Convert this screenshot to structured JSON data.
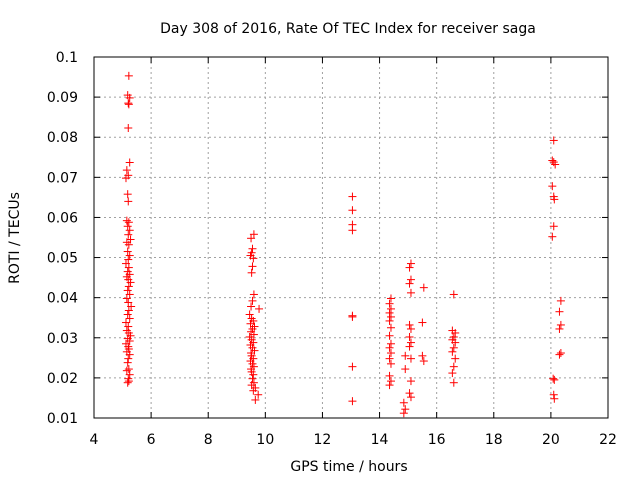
{
  "chart_data": {
    "type": "scatter",
    "title": "Day 308 of 2016, Rate Of TEC Index for receiver saga",
    "xlabel": "GPS time / hours",
    "ylabel": "ROTI / TECUs",
    "xlim": [
      4,
      22
    ],
    "ylim": [
      0.01,
      0.1
    ],
    "xticks": [
      4,
      6,
      8,
      10,
      12,
      14,
      16,
      18,
      20,
      22
    ],
    "xtick_labels": [
      "4",
      "6",
      "8",
      "10",
      "12",
      "14",
      "16",
      "18",
      "20",
      "22"
    ],
    "yticks": [
      0.01,
      0.02,
      0.03,
      0.04,
      0.05,
      0.06,
      0.07,
      0.08,
      0.09,
      0.1
    ],
    "ytick_labels": [
      "0.01",
      "0.02",
      "0.03",
      "0.04",
      "0.05",
      "0.06",
      "0.07",
      "0.08",
      "0.09",
      "0.1"
    ],
    "grid": true,
    "marker": "+",
    "marker_color": "#ff0000",
    "series": [
      {
        "name": "ROTI",
        "points": [
          [
            5.22,
            0.0953
          ],
          [
            5.18,
            0.0905
          ],
          [
            5.25,
            0.0898
          ],
          [
            5.2,
            0.0885
          ],
          [
            5.22,
            0.0882
          ],
          [
            5.2,
            0.0823
          ],
          [
            5.25,
            0.0737
          ],
          [
            5.15,
            0.0718
          ],
          [
            5.2,
            0.0705
          ],
          [
            5.12,
            0.0698
          ],
          [
            5.18,
            0.0658
          ],
          [
            5.2,
            0.064
          ],
          [
            5.15,
            0.0592
          ],
          [
            5.22,
            0.0588
          ],
          [
            5.18,
            0.0578
          ],
          [
            5.25,
            0.0568
          ],
          [
            5.2,
            0.0557
          ],
          [
            5.28,
            0.0545
          ],
          [
            5.15,
            0.0538
          ],
          [
            5.22,
            0.0532
          ],
          [
            5.18,
            0.0515
          ],
          [
            5.25,
            0.0505
          ],
          [
            5.2,
            0.0495
          ],
          [
            5.12,
            0.0485
          ],
          [
            5.22,
            0.0475
          ],
          [
            5.18,
            0.0465
          ],
          [
            5.25,
            0.0458
          ],
          [
            5.15,
            0.0452
          ],
          [
            5.2,
            0.0445
          ],
          [
            5.28,
            0.0438
          ],
          [
            5.22,
            0.0428
          ],
          [
            5.18,
            0.0418
          ],
          [
            5.25,
            0.0408
          ],
          [
            5.15,
            0.0398
          ],
          [
            5.2,
            0.0388
          ],
          [
            5.3,
            0.0378
          ],
          [
            5.22,
            0.0368
          ],
          [
            5.18,
            0.0358
          ],
          [
            5.25,
            0.0348
          ],
          [
            5.12,
            0.0338
          ],
          [
            5.2,
            0.0328
          ],
          [
            5.15,
            0.0318
          ],
          [
            5.22,
            0.0312
          ],
          [
            5.28,
            0.0305
          ],
          [
            5.18,
            0.0298
          ],
          [
            5.25,
            0.0292
          ],
          [
            5.12,
            0.0285
          ],
          [
            5.2,
            0.0278
          ],
          [
            5.22,
            0.0272
          ],
          [
            5.15,
            0.0265
          ],
          [
            5.25,
            0.0258
          ],
          [
            5.2,
            0.0248
          ],
          [
            5.18,
            0.0238
          ],
          [
            5.22,
            0.0222
          ],
          [
            5.15,
            0.0218
          ],
          [
            5.25,
            0.0208
          ],
          [
            5.2,
            0.0198
          ],
          [
            5.22,
            0.0192
          ],
          [
            5.18,
            0.0188
          ],
          [
            9.6,
            0.0558
          ],
          [
            9.5,
            0.0548
          ],
          [
            9.55,
            0.0522
          ],
          [
            9.52,
            0.0512
          ],
          [
            9.48,
            0.0505
          ],
          [
            9.58,
            0.0498
          ],
          [
            9.55,
            0.0478
          ],
          [
            9.52,
            0.0462
          ],
          [
            9.6,
            0.0408
          ],
          [
            9.55,
            0.0392
          ],
          [
            9.5,
            0.0378
          ],
          [
            9.78,
            0.0372
          ],
          [
            9.45,
            0.0358
          ],
          [
            9.52,
            0.0348
          ],
          [
            9.58,
            0.0342
          ],
          [
            9.48,
            0.0335
          ],
          [
            9.62,
            0.0328
          ],
          [
            9.55,
            0.0322
          ],
          [
            9.5,
            0.0315
          ],
          [
            9.6,
            0.0308
          ],
          [
            9.45,
            0.0302
          ],
          [
            9.52,
            0.0295
          ],
          [
            9.58,
            0.0288
          ],
          [
            9.48,
            0.0282
          ],
          [
            9.55,
            0.0275
          ],
          [
            9.62,
            0.0268
          ],
          [
            9.5,
            0.0262
          ],
          [
            9.52,
            0.0255
          ],
          [
            9.58,
            0.0248
          ],
          [
            9.48,
            0.0242
          ],
          [
            9.55,
            0.0235
          ],
          [
            9.6,
            0.0228
          ],
          [
            9.5,
            0.0222
          ],
          [
            9.52,
            0.0215
          ],
          [
            9.58,
            0.0208
          ],
          [
            9.55,
            0.0198
          ],
          [
            9.6,
            0.0188
          ],
          [
            9.52,
            0.0182
          ],
          [
            9.65,
            0.0175
          ],
          [
            9.58,
            0.0168
          ],
          [
            9.75,
            0.0158
          ],
          [
            9.65,
            0.0145
          ],
          [
            13.05,
            0.0652
          ],
          [
            13.05,
            0.0618
          ],
          [
            13.05,
            0.0582
          ],
          [
            13.05,
            0.0568
          ],
          [
            13.05,
            0.0355
          ],
          [
            13.05,
            0.0352
          ],
          [
            13.05,
            0.0228
          ],
          [
            13.05,
            0.0142
          ],
          [
            14.4,
            0.0398
          ],
          [
            14.35,
            0.0385
          ],
          [
            14.4,
            0.0372
          ],
          [
            14.35,
            0.0362
          ],
          [
            14.4,
            0.0352
          ],
          [
            14.35,
            0.0342
          ],
          [
            14.4,
            0.0325
          ],
          [
            14.35,
            0.0305
          ],
          [
            14.4,
            0.0285
          ],
          [
            14.35,
            0.0275
          ],
          [
            14.4,
            0.0262
          ],
          [
            14.35,
            0.0248
          ],
          [
            14.4,
            0.0235
          ],
          [
            14.35,
            0.0205
          ],
          [
            14.4,
            0.0192
          ],
          [
            14.35,
            0.0182
          ],
          [
            15.1,
            0.0485
          ],
          [
            15.05,
            0.0475
          ],
          [
            15.1,
            0.0445
          ],
          [
            15.05,
            0.0435
          ],
          [
            15.1,
            0.0412
          ],
          [
            15.05,
            0.0332
          ],
          [
            15.1,
            0.0322
          ],
          [
            15.05,
            0.0302
          ],
          [
            15.1,
            0.0288
          ],
          [
            15.05,
            0.0278
          ],
          [
            14.9,
            0.0255
          ],
          [
            15.1,
            0.0248
          ],
          [
            14.9,
            0.0222
          ],
          [
            15.1,
            0.0192
          ],
          [
            15.05,
            0.0162
          ],
          [
            15.1,
            0.0152
          ],
          [
            14.85,
            0.0138
          ],
          [
            14.9,
            0.0122
          ],
          [
            14.85,
            0.0112
          ],
          [
            15.55,
            0.0425
          ],
          [
            15.5,
            0.0338
          ],
          [
            15.5,
            0.0255
          ],
          [
            15.55,
            0.0242
          ],
          [
            16.6,
            0.0408
          ],
          [
            16.55,
            0.0318
          ],
          [
            16.65,
            0.0312
          ],
          [
            16.6,
            0.0302
          ],
          [
            16.55,
            0.0295
          ],
          [
            16.65,
            0.0288
          ],
          [
            16.6,
            0.0275
          ],
          [
            16.55,
            0.0265
          ],
          [
            16.65,
            0.0248
          ],
          [
            16.6,
            0.0228
          ],
          [
            16.55,
            0.0212
          ],
          [
            16.6,
            0.0188
          ],
          [
            20.1,
            0.0792
          ],
          [
            20.05,
            0.0742
          ],
          [
            20.1,
            0.0738
          ],
          [
            20.15,
            0.0732
          ],
          [
            20.05,
            0.0678
          ],
          [
            20.1,
            0.0652
          ],
          [
            20.12,
            0.0645
          ],
          [
            20.1,
            0.0578
          ],
          [
            20.05,
            0.0552
          ],
          [
            20.35,
            0.0392
          ],
          [
            20.3,
            0.0365
          ],
          [
            20.35,
            0.0332
          ],
          [
            20.3,
            0.0322
          ],
          [
            20.35,
            0.0262
          ],
          [
            20.3,
            0.0258
          ],
          [
            20.08,
            0.0198
          ],
          [
            20.12,
            0.0195
          ],
          [
            20.1,
            0.0158
          ],
          [
            20.12,
            0.0148
          ]
        ]
      }
    ]
  }
}
